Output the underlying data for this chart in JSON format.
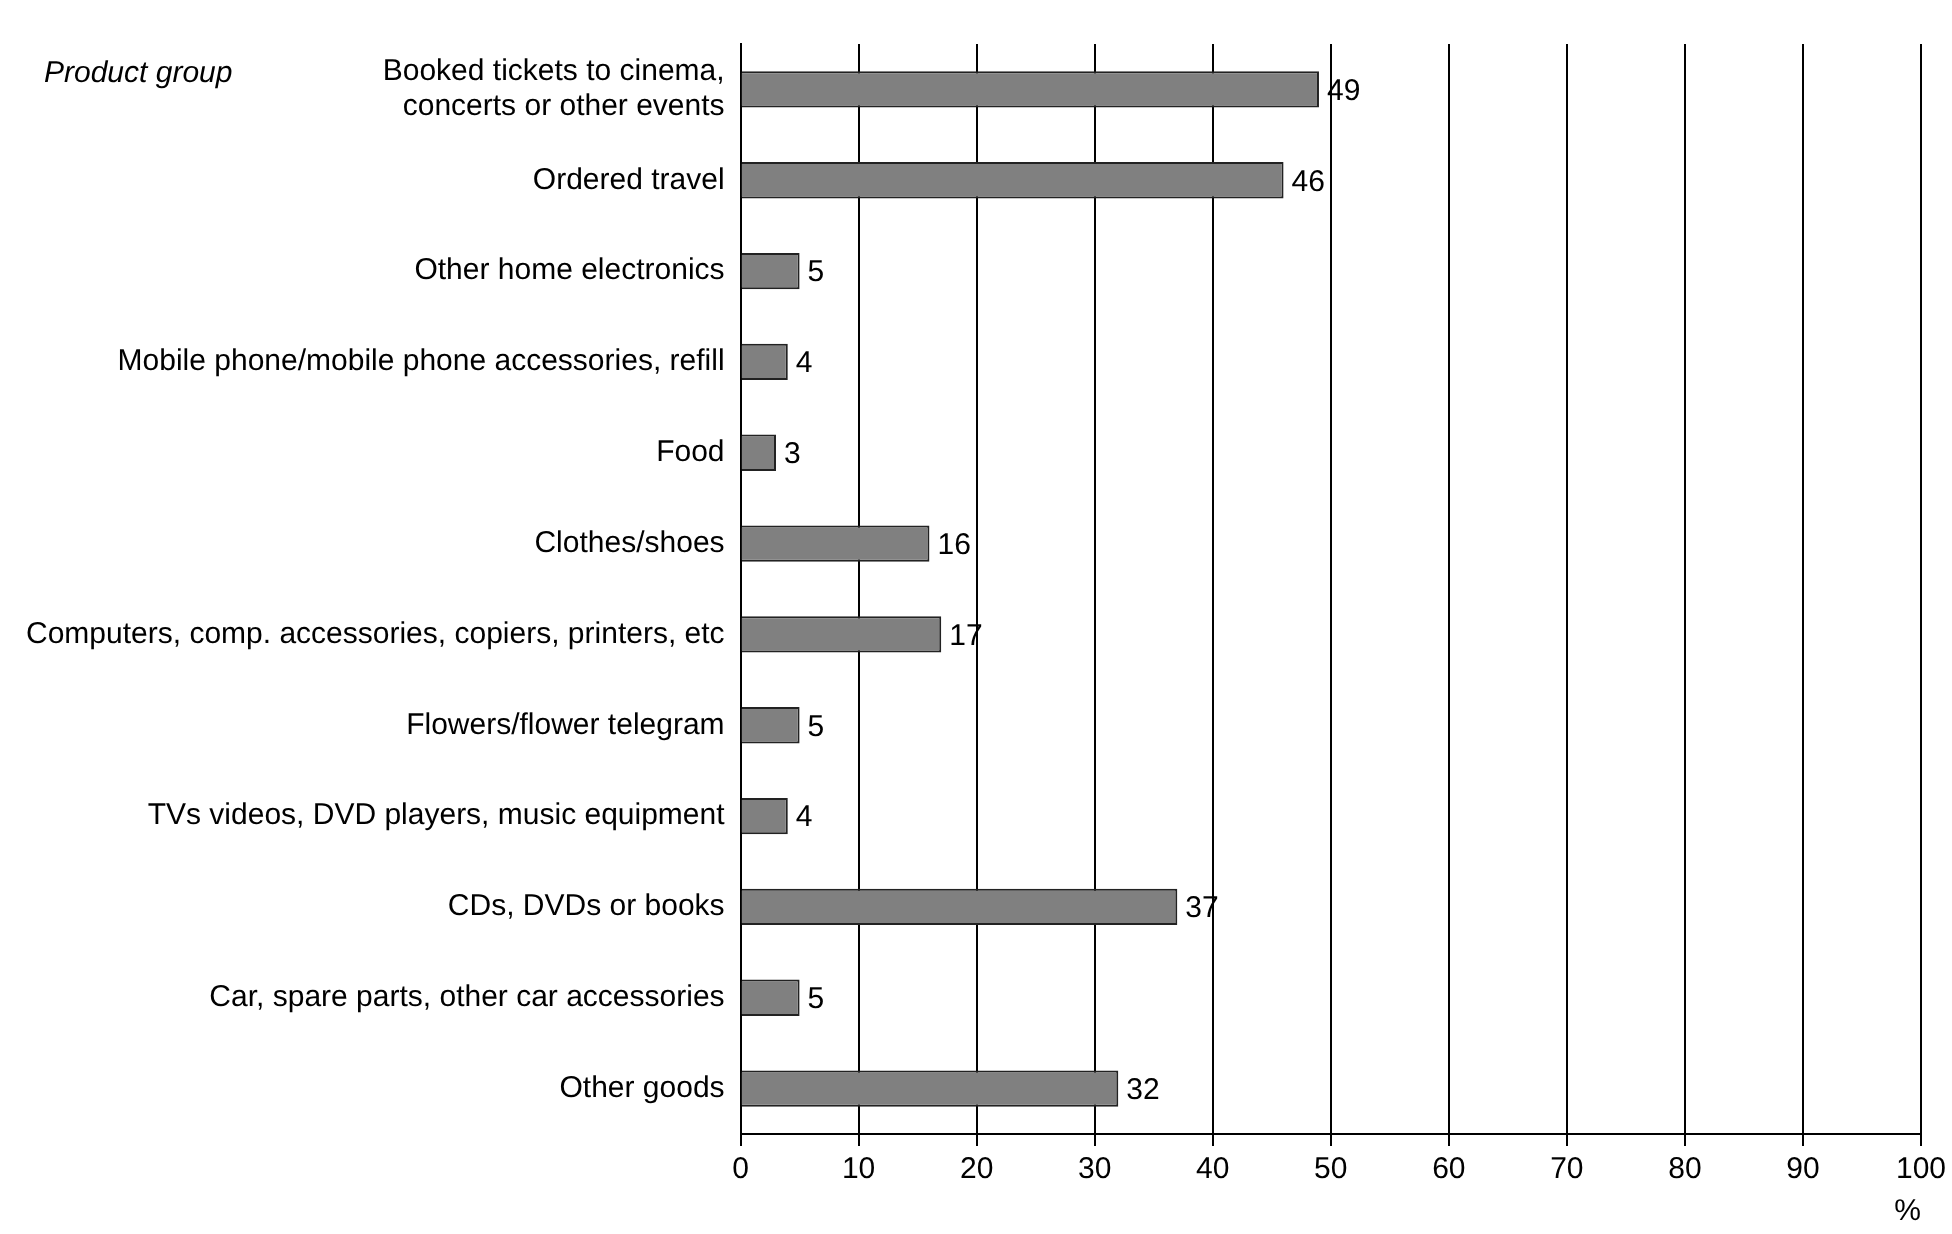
{
  "chart_data": {
    "type": "bar",
    "orientation": "horizontal",
    "ylabel": "Product group",
    "xlabel": "%",
    "categories": [
      "Booked tickets to cinema,\nconcerts or other events",
      "Ordered travel",
      "Other home electronics",
      "Mobile phone/mobile phone accessories, refill",
      "Food",
      "Clothes/shoes",
      "Computers, comp. accessories, copiers, printers, etc",
      "Flowers/flower telegram",
      "TVs videos, DVD players, music equipment",
      "CDs, DVDs or books",
      "Car, spare parts, other car accessories",
      "Other goods"
    ],
    "values": [
      49,
      46,
      5,
      4,
      3,
      16,
      17,
      5,
      4,
      37,
      5,
      32
    ],
    "color": "#808080",
    "xlim": [
      0,
      100
    ],
    "xticks": [
      0,
      10,
      20,
      30,
      40,
      50,
      60,
      70,
      80,
      90,
      100
    ],
    "grid": "x",
    "data_labels": true,
    "legend": false
  }
}
